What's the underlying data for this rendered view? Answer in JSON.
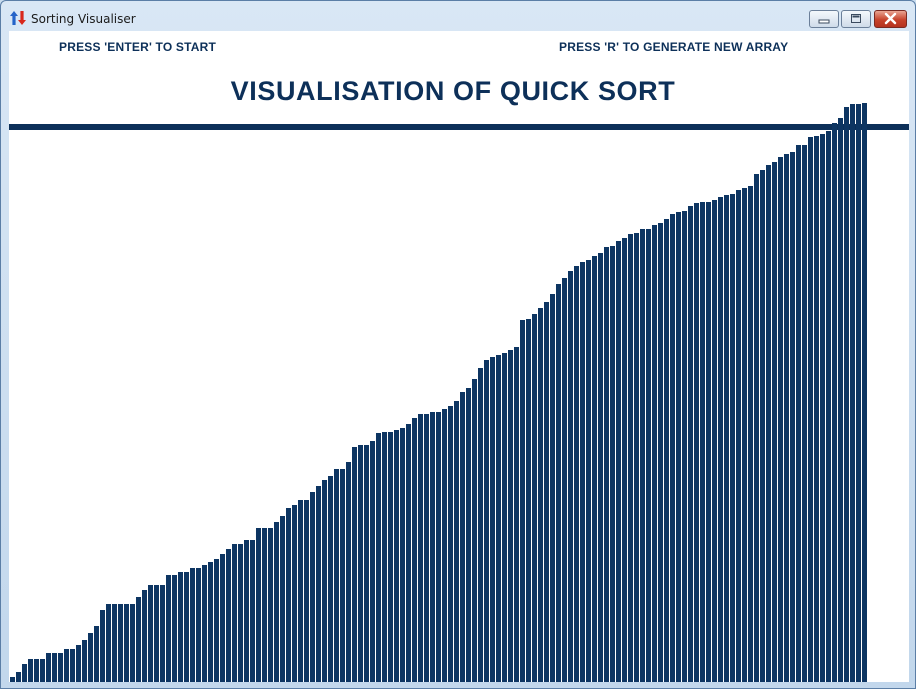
{
  "window": {
    "title": "Sorting Visualiser",
    "app_icon": "up-down-arrows-icon",
    "controls": [
      "minimize-icon",
      "maximize-icon",
      "close-icon"
    ]
  },
  "content": {
    "start_hint": "PRESS 'ENTER' TO START",
    "regen_hint": "PRESS 'R' TO GENERATE NEW ARRAY",
    "heading": "VISUALISATION OF QUICK SORT"
  },
  "colors": {
    "text": "#0d3059",
    "bar": "#0d3562",
    "divider": "#0d3059",
    "background": "#ffffff"
  },
  "chart_data": {
    "type": "bar",
    "sorted": true,
    "values": [
      5,
      10,
      18,
      23,
      23,
      23,
      29,
      29,
      29,
      33,
      33,
      37,
      42,
      49,
      56,
      72,
      78,
      78,
      78,
      78,
      78,
      85,
      92,
      97,
      97,
      97,
      107,
      107,
      110,
      110,
      114,
      114,
      117,
      120,
      123,
      128,
      133,
      138,
      138,
      142,
      142,
      154,
      154,
      154,
      160,
      166,
      174,
      177,
      182,
      182,
      190,
      196,
      202,
      206,
      213,
      213,
      220,
      235,
      237,
      237,
      241,
      249,
      250,
      250,
      252,
      254,
      258,
      264,
      268,
      268,
      270,
      270,
      273,
      276,
      281,
      290,
      294,
      303,
      314,
      322,
      325,
      327,
      329,
      332,
      335,
      362,
      363,
      368,
      374,
      380,
      388,
      398,
      404,
      411,
      416,
      420,
      422,
      426,
      429,
      435,
      436,
      441,
      444,
      448,
      449,
      453,
      453,
      457,
      459,
      463,
      468,
      470,
      471,
      476,
      479,
      480,
      480,
      482,
      485,
      487,
      488,
      492,
      494,
      496,
      508,
      512,
      517,
      520,
      525,
      528,
      530,
      537,
      537,
      545,
      546,
      548,
      551,
      559,
      564,
      575,
      578,
      578,
      579
    ]
  }
}
